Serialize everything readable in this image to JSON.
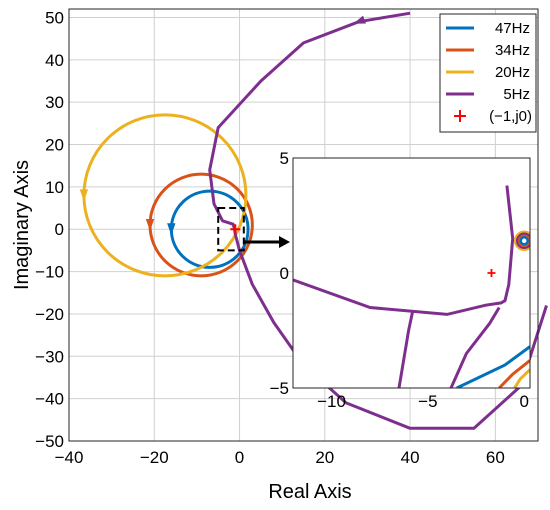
{
  "chart_data": {
    "type": "line",
    "title": "",
    "xlabel": "Real Axis",
    "ylabel": "Imaginary Axis",
    "xlim": [
      -40,
      70
    ],
    "ylim": [
      -50,
      52
    ],
    "xticks": [
      "−40",
      "−20",
      "0",
      "20",
      "40",
      "60"
    ],
    "yticks": [
      "50",
      "40",
      "30",
      "20",
      "10",
      "0",
      "−10",
      "−20",
      "−30",
      "−40",
      "−50"
    ],
    "grid": true,
    "legend": "top-right",
    "colors": {
      "47Hz": "#0072BD",
      "34Hz": "#D95319",
      "20Hz": "#EDB120",
      "5Hz": "#7E2F8E",
      "marker": "#FF0000"
    },
    "series": [
      {
        "name": "47Hz",
        "shape": "circle",
        "center": [
          -7,
          0
        ],
        "radius": 9,
        "direction": "counterclockwise"
      },
      {
        "name": "34Hz",
        "shape": "circle",
        "center": [
          -9,
          1
        ],
        "radius": 12,
        "direction": "counterclockwise"
      },
      {
        "name": "20Hz",
        "shape": "circle",
        "center": [
          -17.5,
          8
        ],
        "radius": 19,
        "direction": "counterclockwise"
      },
      {
        "name": "5Hz",
        "x": [
          40,
          28,
          15,
          5,
          -5,
          -7,
          -6,
          -4,
          -1.5,
          -1.2,
          -1,
          0,
          3,
          8,
          15,
          25,
          40,
          55,
          66,
          72
        ],
        "y": [
          51,
          49,
          44,
          35,
          24,
          14,
          6,
          2,
          1.2,
          0.2,
          -1.2,
          -5,
          -13,
          -22,
          -32,
          -41,
          -47,
          -47,
          -37,
          -18
        ],
        "direction": "counterclockwise"
      }
    ],
    "marker": {
      "name": "(−1,j0)",
      "x": -1,
      "y": 0,
      "symbol": "+"
    },
    "inset": {
      "xlim": [
        -12,
        0.3
      ],
      "ylim": [
        -5,
        5
      ],
      "xticks": [
        "−10",
        "−5",
        "0"
      ],
      "yticks": [
        "5",
        "0",
        "−5"
      ],
      "series": [
        {
          "name": "47Hz",
          "x": [
            0.3,
            -1,
            -3.5
          ],
          "y": [
            -3.2,
            -4,
            -5
          ]
        },
        {
          "name": "34Hz",
          "x": [
            0.3,
            -0.6,
            -1.3
          ],
          "y": [
            -3.8,
            -4.4,
            -5
          ]
        },
        {
          "name": "20Hz",
          "x": [
            0.3,
            -0.2,
            -0.5
          ],
          "y": [
            -4.2,
            -4.6,
            -5
          ]
        },
        {
          "name": "5Hz",
          "x": [
            -12,
            -8,
            -4,
            -2,
            -1.2,
            -1,
            -0.8,
            -0.6,
            -0.9
          ],
          "y": [
            -0.3,
            -1.5,
            -1.8,
            -1.4,
            -1.3,
            -1.2,
            -0.5,
            1.5,
            3.8
          ]
        },
        {
          "name": "5Hz",
          "x": [
            -6.5,
            -6,
            -5.8
          ],
          "y": [
            -5,
            -2.5,
            -1.7
          ]
        },
        {
          "name": "5Hz",
          "x": [
            -3.8,
            -3,
            -1.8,
            -1.3
          ],
          "y": [
            -5,
            -3.5,
            -2.2,
            -1.5
          ]
        }
      ]
    }
  }
}
